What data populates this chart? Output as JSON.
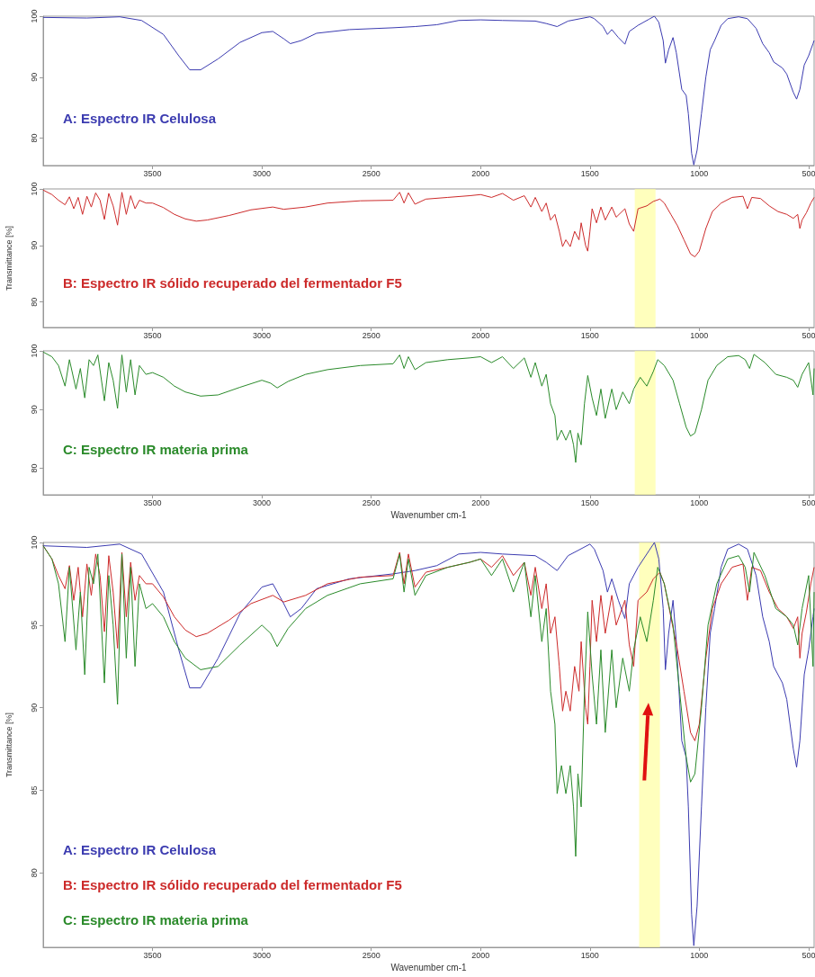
{
  "chart_data": [
    {
      "type": "line",
      "xlim": [
        4000,
        475
      ],
      "xticks": [
        3500,
        3000,
        2500,
        2000,
        1500,
        1000,
        500
      ],
      "ylim": [
        75.5,
        100
      ],
      "yticks": [
        80,
        90,
        100
      ],
      "grid": false,
      "legend": "bottom left",
      "series": [
        {
          "name": "A: Espectro IR Celulosa",
          "color": "#3b3bb0",
          "x": [
            4000,
            3800,
            3650,
            3550,
            3450,
            3380,
            3330,
            3280,
            3200,
            3100,
            3000,
            2950,
            2900,
            2870,
            2820,
            2750,
            2600,
            2400,
            2300,
            2200,
            2100,
            2000,
            1900,
            1750,
            1700,
            1650,
            1600,
            1500,
            1480,
            1440,
            1420,
            1400,
            1370,
            1340,
            1320,
            1280,
            1230,
            1205,
            1185,
            1165,
            1155,
            1140,
            1120,
            1105,
            1080,
            1060,
            1050,
            1035,
            1025,
            1010,
            990,
            970,
            950,
            930,
            900,
            870,
            820,
            780,
            740,
            710,
            680,
            660,
            620,
            600,
            570,
            555,
            540,
            520,
            500,
            480,
            475
          ],
          "values": [
            99.8,
            99.7,
            99.9,
            99.3,
            97,
            93.5,
            91.2,
            91.2,
            93,
            95.7,
            97.3,
            97.5,
            96.3,
            95.5,
            96,
            97.2,
            97.8,
            98.1,
            98.3,
            98.6,
            99.3,
            99.4,
            99.3,
            99.2,
            98.8,
            98.3,
            99.2,
            99.9,
            99.6,
            98.3,
            97,
            97.8,
            96.5,
            95.4,
            97.5,
            98.5,
            99.5,
            100,
            99,
            96,
            92.3,
            94.5,
            96.5,
            94,
            88,
            87,
            84,
            77.5,
            75.6,
            78,
            84,
            90,
            94.5,
            96,
            98.5,
            99.6,
            99.9,
            99.6,
            98,
            95.5,
            94,
            92.5,
            91.5,
            90.5,
            87.5,
            86.4,
            88,
            92,
            93.5,
            95.5,
            96
          ]
        }
      ]
    },
    {
      "type": "line",
      "ylabel": "Transmittance [%]",
      "xlim": [
        4000,
        475
      ],
      "xticks": [
        3500,
        3000,
        2500,
        2000,
        1500,
        1000,
        500
      ],
      "ylim": [
        75.5,
        100
      ],
      "yticks": [
        80,
        90,
        100
      ],
      "grid": false,
      "legend": "bottom left",
      "bands": [
        {
          "axis": "x",
          "from": 1295,
          "to": 1200,
          "color": "#ffff99"
        }
      ],
      "series": [
        {
          "name": "B: Espectro IR sólido recuperado del fermentador F5",
          "color": "#cc2a2a",
          "x": [
            4000,
            3960,
            3930,
            3900,
            3880,
            3860,
            3840,
            3820,
            3800,
            3780,
            3760,
            3740,
            3720,
            3700,
            3680,
            3660,
            3640,
            3620,
            3600,
            3580,
            3560,
            3530,
            3500,
            3450,
            3400,
            3350,
            3300,
            3250,
            3150,
            3050,
            2950,
            2900,
            2800,
            2700,
            2550,
            2400,
            2370,
            2350,
            2330,
            2300,
            2250,
            2150,
            2050,
            2000,
            1950,
            1900,
            1850,
            1800,
            1770,
            1750,
            1720,
            1700,
            1680,
            1660,
            1640,
            1625,
            1610,
            1590,
            1570,
            1550,
            1540,
            1520,
            1510,
            1500,
            1490,
            1470,
            1450,
            1430,
            1400,
            1380,
            1340,
            1320,
            1300,
            1280,
            1240,
            1210,
            1180,
            1160,
            1130,
            1100,
            1070,
            1040,
            1020,
            1000,
            970,
            940,
            900,
            850,
            800,
            780,
            760,
            720,
            680,
            640,
            600,
            570,
            550,
            540,
            530,
            510,
            490,
            475
          ],
          "values": [
            99.8,
            99,
            98,
            97.2,
            98.6,
            96.5,
            98.5,
            95.5,
            98.7,
            96.8,
            99.3,
            98,
            94.6,
            99.2,
            97,
            93.6,
            99.4,
            95.5,
            98.8,
            96.5,
            98,
            97.5,
            97.5,
            96.7,
            95.5,
            94.7,
            94.3,
            94.5,
            95.3,
            96.3,
            96.8,
            96.4,
            96.8,
            97.5,
            97.9,
            98,
            99.4,
            97.5,
            99.3,
            97.3,
            98.2,
            98.5,
            98.8,
            99,
            98.5,
            99.2,
            98,
            98.8,
            96.8,
            98.5,
            96,
            97.5,
            94.5,
            95.5,
            92.5,
            89.8,
            91,
            89.8,
            92.5,
            91,
            94,
            90,
            89,
            92.5,
            96.5,
            94,
            96.8,
            94.5,
            96.8,
            95,
            96.5,
            93.8,
            92.5,
            96.5,
            97,
            97.8,
            98.2,
            97.5,
            95.5,
            93.5,
            91,
            88.5,
            88,
            89,
            93,
            96,
            97.5,
            98.5,
            98.7,
            96.5,
            98.5,
            98.3,
            97,
            96,
            95.5,
            94.8,
            95.5,
            93,
            94.5,
            95.8,
            97.5,
            98.5
          ]
        }
      ]
    },
    {
      "type": "line",
      "xlabel": "Wavenumber cm-1",
      "xlim": [
        4000,
        475
      ],
      "xticks": [
        3500,
        3000,
        2500,
        2000,
        1500,
        1000,
        500
      ],
      "ylim": [
        75.5,
        100
      ],
      "yticks": [
        80,
        90,
        100
      ],
      "grid": false,
      "legend": "bottom left",
      "bands": [
        {
          "axis": "x",
          "from": 1295,
          "to": 1200,
          "color": "#ffff99"
        }
      ],
      "series": [
        {
          "name": "C: Espectro IR materia prima",
          "color": "#2a8a2a",
          "x": [
            4000,
            3960,
            3930,
            3900,
            3880,
            3850,
            3830,
            3810,
            3790,
            3770,
            3750,
            3720,
            3700,
            3680,
            3660,
            3640,
            3620,
            3600,
            3580,
            3560,
            3530,
            3500,
            3450,
            3400,
            3350,
            3280,
            3200,
            3100,
            3000,
            2960,
            2930,
            2880,
            2800,
            2700,
            2550,
            2400,
            2370,
            2350,
            2330,
            2300,
            2250,
            2150,
            2050,
            2000,
            1950,
            1900,
            1850,
            1800,
            1770,
            1750,
            1720,
            1700,
            1680,
            1660,
            1650,
            1630,
            1610,
            1590,
            1575,
            1565,
            1555,
            1540,
            1525,
            1510,
            1490,
            1470,
            1450,
            1430,
            1400,
            1380,
            1350,
            1320,
            1300,
            1270,
            1240,
            1210,
            1190,
            1160,
            1120,
            1090,
            1060,
            1040,
            1020,
            990,
            960,
            920,
            870,
            820,
            790,
            770,
            750,
            700,
            650,
            600,
            570,
            550,
            530,
            500,
            480,
            475
          ],
          "values": [
            99.8,
            99,
            97.5,
            94,
            98.5,
            93.5,
            97,
            92,
            98.5,
            97.5,
            99.3,
            91.5,
            98,
            95,
            90.2,
            99.3,
            93,
            98.5,
            92.5,
            97.5,
            96,
            96.3,
            95.5,
            94,
            93,
            92.3,
            92.5,
            93.8,
            95,
            94.5,
            93.7,
            94.8,
            96,
            96.8,
            97.5,
            97.8,
            99.3,
            97,
            99,
            96.8,
            98,
            98.5,
            98.8,
            99,
            98,
            99,
            97,
            98.8,
            95.5,
            98,
            94,
            96,
            91,
            89,
            84.8,
            86.5,
            84.8,
            86.5,
            84,
            81,
            86,
            84,
            91,
            95.8,
            92,
            89,
            93.5,
            88.5,
            93.5,
            90,
            93,
            91,
            93.5,
            95.5,
            94,
            96.5,
            98.5,
            97.5,
            95,
            91,
            87,
            85.5,
            86,
            90,
            95,
            97.5,
            99,
            99.2,
            98.5,
            97,
            99.4,
            98,
            96,
            95.5,
            95,
            93.8,
            96,
            98,
            92.5,
            97
          ]
        }
      ]
    },
    {
      "type": "line",
      "xlabel": "Wavenumber cm-1",
      "ylabel": "Transmittance [%]",
      "xlim": [
        4000,
        475
      ],
      "xticks": [
        3500,
        3000,
        2500,
        2000,
        1500,
        1000,
        500
      ],
      "ylim": [
        75.5,
        100
      ],
      "yticks": [
        80,
        85,
        90,
        95,
        100
      ],
      "grid": false,
      "legend": "bottom left",
      "bands": [
        {
          "axis": "x",
          "from": 1275,
          "to": 1180,
          "color": "#ffff99"
        }
      ],
      "series": [
        {
          "name": "A: Espectro IR Celulosa",
          "color": "#3b3bb0",
          "x": [
            4000,
            3800,
            3650,
            3550,
            3450,
            3380,
            3330,
            3280,
            3200,
            3100,
            3000,
            2950,
            2900,
            2870,
            2820,
            2750,
            2600,
            2400,
            2300,
            2200,
            2100,
            2000,
            1900,
            1750,
            1700,
            1650,
            1600,
            1500,
            1480,
            1440,
            1420,
            1400,
            1370,
            1340,
            1320,
            1280,
            1230,
            1205,
            1185,
            1165,
            1155,
            1140,
            1120,
            1105,
            1080,
            1060,
            1050,
            1035,
            1025,
            1010,
            990,
            970,
            950,
            930,
            900,
            870,
            820,
            780,
            740,
            710,
            680,
            660,
            620,
            600,
            570,
            555,
            540,
            520,
            500,
            480,
            475
          ],
          "values": [
            99.8,
            99.7,
            99.9,
            99.3,
            97,
            93.5,
            91.2,
            91.2,
            93,
            95.7,
            97.3,
            97.5,
            96.3,
            95.5,
            96,
            97.2,
            97.8,
            98.1,
            98.3,
            98.6,
            99.3,
            99.4,
            99.3,
            99.2,
            98.8,
            98.3,
            99.2,
            99.9,
            99.6,
            98.3,
            97,
            97.8,
            96.5,
            95.4,
            97.5,
            98.5,
            99.5,
            100,
            99,
            96,
            92.3,
            94.5,
            96.5,
            94,
            88,
            87,
            84,
            77.5,
            75.6,
            78,
            84,
            90,
            94.5,
            96,
            98.5,
            99.6,
            99.9,
            99.6,
            98,
            95.5,
            94,
            92.5,
            91.5,
            90.5,
            87.5,
            86.4,
            88,
            92,
            93.5,
            95.5,
            96
          ]
        },
        {
          "name": "B: Espectro IR sólido recuperado del fermentador F5",
          "color": "#cc2a2a",
          "x": [
            4000,
            3960,
            3930,
            3900,
            3880,
            3860,
            3840,
            3820,
            3800,
            3780,
            3760,
            3740,
            3720,
            3700,
            3680,
            3660,
            3640,
            3620,
            3600,
            3580,
            3560,
            3530,
            3500,
            3450,
            3400,
            3350,
            3300,
            3250,
            3150,
            3050,
            2950,
            2900,
            2800,
            2700,
            2550,
            2400,
            2370,
            2350,
            2330,
            2300,
            2250,
            2150,
            2050,
            2000,
            1950,
            1900,
            1850,
            1800,
            1770,
            1750,
            1720,
            1700,
            1680,
            1660,
            1640,
            1625,
            1610,
            1590,
            1570,
            1550,
            1540,
            1520,
            1510,
            1500,
            1490,
            1470,
            1450,
            1430,
            1400,
            1380,
            1340,
            1320,
            1300,
            1280,
            1240,
            1210,
            1180,
            1160,
            1130,
            1100,
            1070,
            1040,
            1020,
            1000,
            970,
            940,
            900,
            850,
            800,
            780,
            760,
            720,
            680,
            640,
            600,
            570,
            550,
            540,
            530,
            510,
            490,
            475
          ],
          "values": [
            99.8,
            99,
            98,
            97.2,
            98.6,
            96.5,
            98.5,
            95.5,
            98.7,
            96.8,
            99.3,
            98,
            94.6,
            99.2,
            97,
            93.6,
            99.4,
            95.5,
            98.8,
            96.5,
            98,
            97.5,
            97.5,
            96.7,
            95.5,
            94.7,
            94.3,
            94.5,
            95.3,
            96.3,
            96.8,
            96.4,
            96.8,
            97.5,
            97.9,
            98,
            99.4,
            97.5,
            99.3,
            97.3,
            98.2,
            98.5,
            98.8,
            99,
            98.5,
            99.2,
            98,
            98.8,
            96.8,
            98.5,
            96,
            97.5,
            94.5,
            95.5,
            92.5,
            89.8,
            91,
            89.8,
            92.5,
            91,
            94,
            90,
            89,
            92.5,
            96.5,
            94,
            96.8,
            94.5,
            96.8,
            95,
            96.5,
            93.8,
            92.5,
            96.5,
            97,
            97.8,
            98.2,
            97.5,
            95.5,
            93.5,
            91,
            88.5,
            88,
            89,
            93,
            96,
            97.5,
            98.5,
            98.7,
            96.5,
            98.5,
            98.3,
            97,
            96,
            95.5,
            94.8,
            95.5,
            93,
            94.5,
            95.8,
            97.5,
            98.5
          ]
        },
        {
          "name": "C: Espectro IR materia prima",
          "color": "#2a8a2a",
          "x": [
            4000,
            3960,
            3930,
            3900,
            3880,
            3850,
            3830,
            3810,
            3790,
            3770,
            3750,
            3720,
            3700,
            3680,
            3660,
            3640,
            3620,
            3600,
            3580,
            3560,
            3530,
            3500,
            3450,
            3400,
            3350,
            3280,
            3200,
            3100,
            3000,
            2960,
            2930,
            2880,
            2800,
            2700,
            2550,
            2400,
            2370,
            2350,
            2330,
            2300,
            2250,
            2150,
            2050,
            2000,
            1950,
            1900,
            1850,
            1800,
            1770,
            1750,
            1720,
            1700,
            1680,
            1660,
            1650,
            1630,
            1610,
            1590,
            1575,
            1565,
            1555,
            1540,
            1525,
            1510,
            1490,
            1470,
            1450,
            1430,
            1400,
            1380,
            1350,
            1320,
            1300,
            1270,
            1240,
            1210,
            1190,
            1160,
            1120,
            1090,
            1060,
            1040,
            1020,
            990,
            960,
            920,
            870,
            820,
            790,
            770,
            750,
            700,
            650,
            600,
            570,
            550,
            530,
            500,
            480,
            475
          ],
          "values": [
            99.8,
            99,
            97.5,
            94,
            98.5,
            93.5,
            97,
            92,
            98.5,
            97.5,
            99.3,
            91.5,
            98,
            95,
            90.2,
            99.3,
            93,
            98.5,
            92.5,
            97.5,
            96,
            96.3,
            95.5,
            94,
            93,
            92.3,
            92.5,
            93.8,
            95,
            94.5,
            93.7,
            94.8,
            96,
            96.8,
            97.5,
            97.8,
            99.3,
            97,
            99,
            96.8,
            98,
            98.5,
            98.8,
            99,
            98,
            99,
            97,
            98.8,
            95.5,
            98,
            94,
            96,
            91,
            89,
            84.8,
            86.5,
            84.8,
            86.5,
            84,
            81,
            86,
            84,
            91,
            95.8,
            92,
            89,
            93.5,
            88.5,
            93.5,
            90,
            93,
            91,
            93.5,
            95.5,
            94,
            96.5,
            98.5,
            97.5,
            95,
            91,
            87,
            85.5,
            86,
            90,
            95,
            97.5,
            99,
            99.2,
            98.5,
            97,
            99.4,
            98,
            96,
            95.5,
            95,
            93.8,
            96,
            98,
            92.5,
            97
          ]
        }
      ]
    }
  ]
}
